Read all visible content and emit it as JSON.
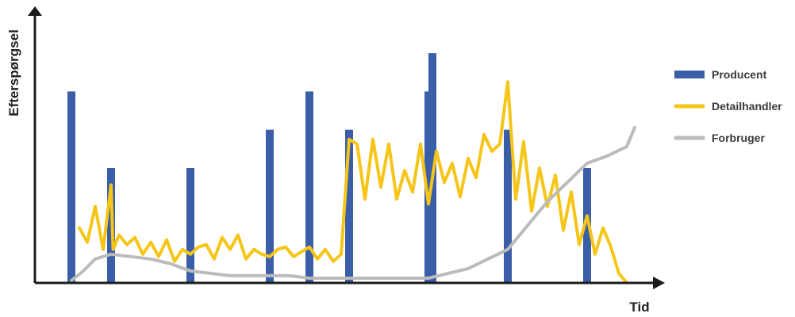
{
  "chart_data": {
    "type": "bar+line",
    "xlabel": "Tid",
    "ylabel": "Efterspørgsel",
    "xlim": [
      0,
      140
    ],
    "ylim": [
      0,
      100
    ],
    "grid": false,
    "legend_position": "right",
    "series": [
      {
        "name": "Producent",
        "type": "bar",
        "color": "#3a5ea8",
        "x": [
          0,
          10,
          30,
          50,
          60,
          70,
          90,
          91,
          110,
          130
        ],
        "values": [
          80,
          48,
          48,
          64,
          80,
          64,
          80,
          96,
          64,
          48
        ]
      },
      {
        "name": "Detailhandler",
        "type": "line",
        "color": "#f5c518",
        "x": [
          2,
          4,
          6,
          8,
          10,
          10.5,
          12,
          14,
          16,
          18,
          20,
          22,
          24,
          26,
          28,
          30,
          32,
          34,
          36,
          38,
          40,
          42,
          44,
          46,
          48,
          50,
          52,
          54,
          56,
          58,
          60,
          62,
          64,
          66,
          68,
          70,
          72,
          74,
          76,
          78,
          80,
          82,
          84,
          86,
          88,
          90,
          92,
          94,
          96,
          98,
          100,
          102,
          104,
          106,
          108,
          110,
          112,
          114,
          116,
          118,
          120,
          122,
          124,
          126,
          128,
          130,
          132,
          134,
          136,
          138,
          140
        ],
        "values": [
          23,
          17,
          32,
          14,
          41,
          14,
          20,
          16,
          19,
          12,
          17,
          11,
          18,
          9,
          14,
          12,
          15,
          16,
          10,
          19,
          14,
          20,
          10,
          14,
          12,
          11,
          14,
          15,
          11,
          13,
          15,
          10,
          14,
          9,
          12,
          60,
          58,
          35,
          60,
          40,
          58,
          35,
          47,
          38,
          58,
          33,
          55,
          42,
          50,
          36,
          52,
          44,
          62,
          55,
          58,
          84,
          35,
          59,
          30,
          48,
          32,
          45,
          22,
          38,
          16,
          28,
          12,
          23,
          15,
          4,
          0
        ]
      },
      {
        "name": "Forbruger",
        "type": "line",
        "color": "#bbbbbb",
        "x": [
          0,
          3,
          6,
          10,
          15,
          20,
          25,
          30,
          35,
          40,
          45,
          50,
          55,
          60,
          65,
          70,
          75,
          80,
          85,
          90,
          95,
          100,
          105,
          110,
          115,
          120,
          125,
          130,
          135,
          140,
          142
        ],
        "values": [
          1,
          5,
          10,
          12,
          11,
          10,
          8,
          5,
          4,
          3,
          3,
          3,
          3,
          2,
          2,
          2,
          2,
          2,
          2,
          2,
          4,
          6,
          10,
          14,
          24,
          34,
          42,
          50,
          53,
          57,
          65
        ]
      }
    ]
  }
}
